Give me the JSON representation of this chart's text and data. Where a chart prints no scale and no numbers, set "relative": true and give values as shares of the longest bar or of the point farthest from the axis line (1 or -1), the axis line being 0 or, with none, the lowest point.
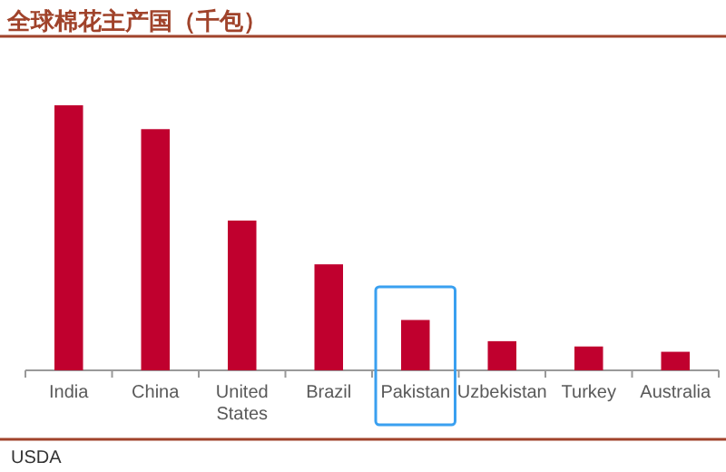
{
  "chart_data": {
    "type": "bar",
    "title": "全球棉花主产国（千包）",
    "relative": true,
    "categories": [
      "India",
      "China",
      "United States",
      "Brazil",
      "Pakistan",
      "Uzbekistan",
      "Turkey",
      "Australia"
    ],
    "values": [
      1,
      0.91,
      0.565,
      0.4,
      0.19,
      0.11,
      0.09,
      0.07
    ],
    "color": "#c0002e",
    "annotations": [
      "USDA"
    ]
  }
}
